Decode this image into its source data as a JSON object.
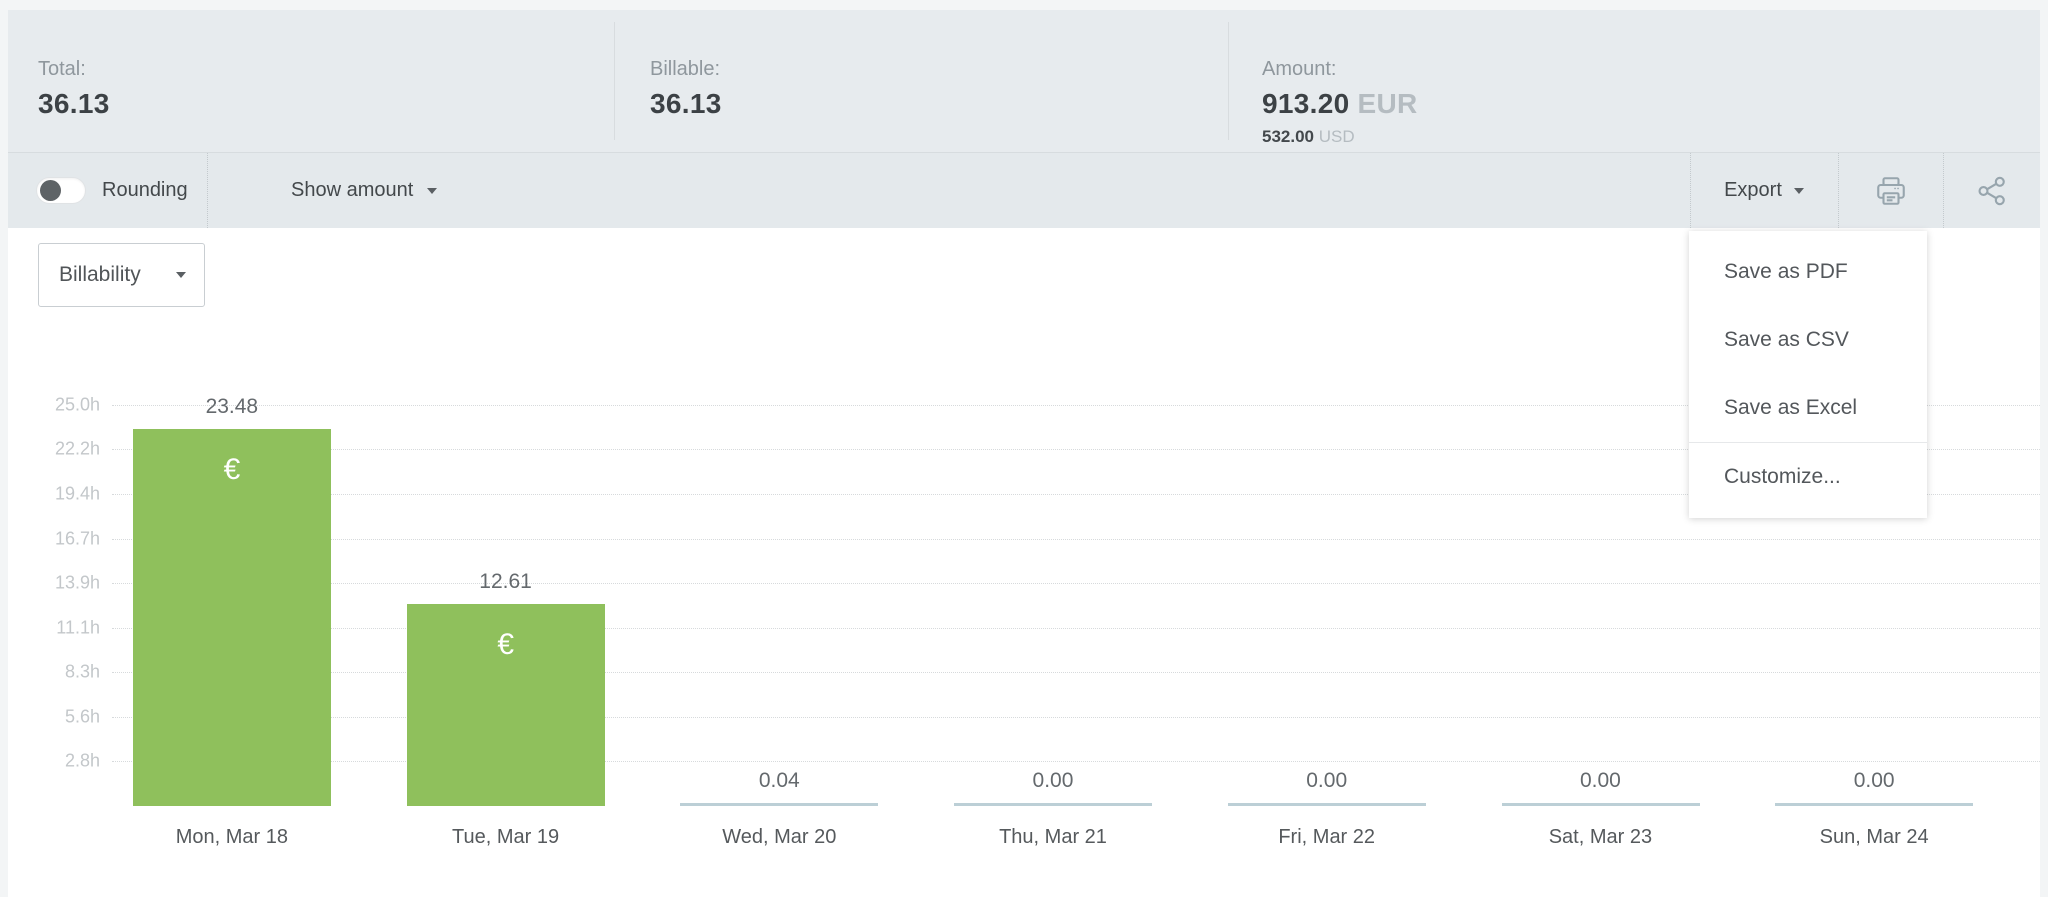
{
  "stats": {
    "total_label": "Total:",
    "total_value": "36.13",
    "billable_label": "Billable:",
    "billable_value": "36.13",
    "amount_label": "Amount:",
    "amount_eur_value": "913.20",
    "amount_eur_currency": "EUR",
    "amount_usd_value": "532.00",
    "amount_usd_currency": "USD"
  },
  "toolbar": {
    "rounding_label": "Rounding",
    "rounding_on": false,
    "show_amount_label": "Show amount",
    "export_label": "Export"
  },
  "export_menu": {
    "items": [
      "Save as PDF",
      "Save as CSV",
      "Save as Excel"
    ],
    "separated_item": "Customize..."
  },
  "filters": {
    "chart_type_selected": "Billability"
  },
  "chart_data": {
    "type": "bar",
    "categories": [
      "Mon, Mar 18",
      "Tue, Mar 19",
      "Wed, Mar 20",
      "Thu, Mar 21",
      "Fri, Mar 22",
      "Sat, Mar 23",
      "Sun, Mar 24"
    ],
    "values": [
      23.48,
      12.61,
      0.04,
      0.0,
      0.0,
      0.0,
      0.0
    ],
    "value_labels": [
      "23.48",
      "12.61",
      "0.04",
      "0.00",
      "0.00",
      "0.00",
      "0.00"
    ],
    "currency_symbol": "€",
    "symbol_shown_on": [
      true,
      true,
      false,
      false,
      false,
      false,
      false
    ],
    "unit": "hours",
    "ylim": [
      0,
      25.2
    ],
    "yticks": {
      "labels": [
        "25.0h",
        "22.2h",
        "19.4h",
        "16.7h",
        "13.9h",
        "11.1h",
        "8.3h",
        "5.6h",
        "2.8h"
      ],
      "hours": [
        25.0,
        22.22,
        19.44,
        16.67,
        13.89,
        11.11,
        8.33,
        5.56,
        2.78
      ]
    },
    "grid": "horizontal-dotted",
    "legend": "none",
    "colors": {
      "bar": "#8FC05C",
      "zero_line": "#BCCFD6"
    }
  }
}
